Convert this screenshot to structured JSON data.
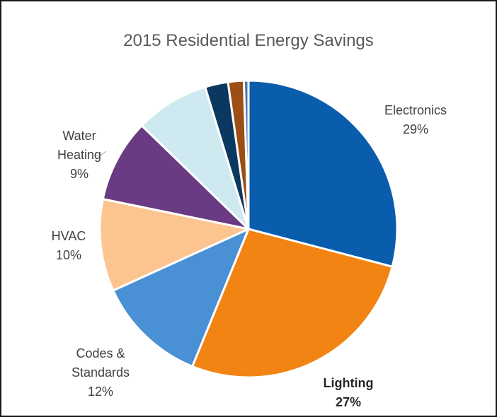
{
  "chart_data": {
    "type": "pie",
    "title": "2015 Residential Energy Savings",
    "slices": [
      {
        "label": "Electronics",
        "value": 29,
        "color": "#0A5CAC"
      },
      {
        "label": "Lighting",
        "value": 27,
        "color": "#F28414"
      },
      {
        "label": "Codes & Standards",
        "value": 12,
        "color": "#4A90D4"
      },
      {
        "label": "HVAC",
        "value": 10,
        "color": "#FCC590"
      },
      {
        "label": "Water Heating",
        "value": 9,
        "color": "#6A3B82"
      },
      {
        "label": "",
        "value": 8,
        "color": "#CFE9F0"
      },
      {
        "label": "",
        "value": 2.5,
        "color": "#0B3861"
      },
      {
        "label": "",
        "value": 1.7,
        "color": "#9C4E14"
      },
      {
        "label": "",
        "value": 0.5,
        "color": "#4B78B4"
      }
    ],
    "labels": [
      {
        "lines": [
          "Electronics",
          "29%"
        ],
        "bold": false
      },
      {
        "lines": [
          "Lighting",
          "27%"
        ],
        "bold": true
      },
      {
        "lines": [
          "Codes &",
          "Standards",
          "12%"
        ],
        "bold": false
      },
      {
        "lines": [
          "HVAC",
          "10%"
        ],
        "bold": false
      },
      {
        "lines": [
          "Water",
          "Heating",
          "9%"
        ],
        "bold": false
      }
    ],
    "legend": "none"
  }
}
